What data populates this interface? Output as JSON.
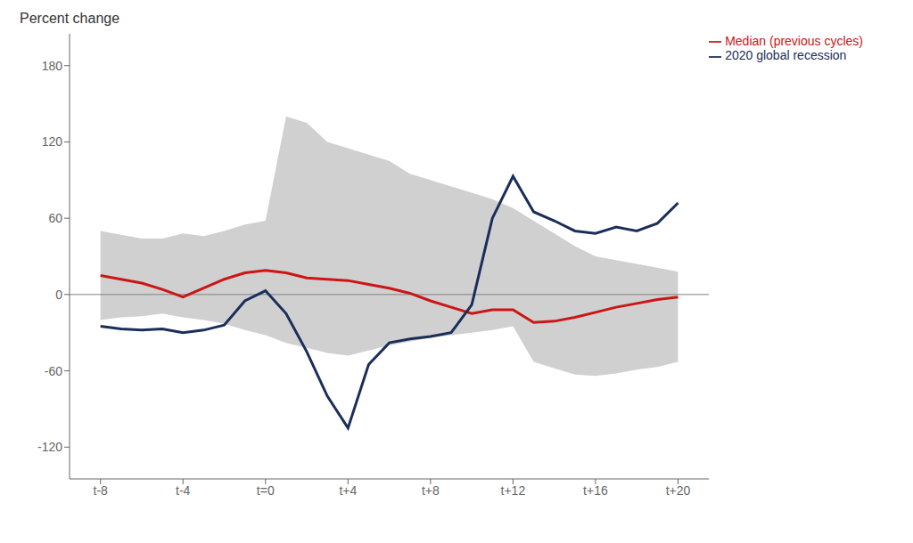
{
  "chart_data": {
    "type": "line",
    "ylabel": "Percent change",
    "x": [
      -8,
      -7,
      -6,
      -5,
      -4,
      -3,
      -2,
      -1,
      0,
      1,
      2,
      3,
      4,
      5,
      6,
      7,
      8,
      9,
      10,
      11,
      12,
      13,
      14,
      15,
      16,
      17,
      18,
      19,
      20
    ],
    "series": [
      {
        "name": "2020 global recession",
        "color": "#1a2e5a",
        "values": [
          -25,
          -27,
          -28,
          -27,
          -30,
          -28,
          -24,
          -5,
          3,
          -15,
          -45,
          -80,
          -105,
          -55,
          -38,
          -35,
          -33,
          -30,
          -8,
          60,
          93,
          65,
          58,
          50,
          48,
          53,
          50,
          56,
          72
        ]
      },
      {
        "name": "Median (previous cycles)",
        "color": "#cc1515",
        "values": [
          15,
          12,
          9,
          4,
          -2,
          5,
          12,
          17,
          19,
          17,
          13,
          12,
          11,
          8,
          5,
          1,
          -5,
          -10,
          -15,
          -12,
          -12,
          -22,
          -21,
          -18,
          -14,
          -10,
          -7,
          -4,
          -2
        ]
      }
    ],
    "band": {
      "upper": [
        50,
        47,
        44,
        44,
        48,
        46,
        50,
        55,
        58,
        140,
        135,
        120,
        115,
        110,
        105,
        95,
        90,
        85,
        80,
        75,
        68,
        58,
        48,
        38,
        30,
        27,
        24,
        21,
        18
      ],
      "lower": [
        -20,
        -18,
        -17,
        -15,
        -18,
        -20,
        -23,
        -28,
        -32,
        -38,
        -42,
        -46,
        -48,
        -44,
        -40,
        -37,
        -34,
        -32,
        -30,
        -28,
        -25,
        -53,
        -58,
        -63,
        -64,
        -62,
        -59,
        -57,
        -53
      ],
      "color": "#d0d0d0"
    },
    "reference_line": 0,
    "xlim": [
      -9.5,
      21.5
    ],
    "xticks": [
      {
        "value": -8,
        "label": "t-8"
      },
      {
        "value": -4,
        "label": "t-4"
      },
      {
        "value": 0,
        "label": "t=0"
      },
      {
        "value": 4,
        "label": "t+4"
      },
      {
        "value": 8,
        "label": "t+8"
      },
      {
        "value": 12,
        "label": "t+12"
      },
      {
        "value": 16,
        "label": "t+16"
      },
      {
        "value": 20,
        "label": "t+20"
      }
    ],
    "ylim": [
      -145,
      205
    ],
    "yticks": [
      -120,
      -60,
      0,
      60,
      120,
      180
    ],
    "grid": false,
    "legend": "upper right"
  }
}
